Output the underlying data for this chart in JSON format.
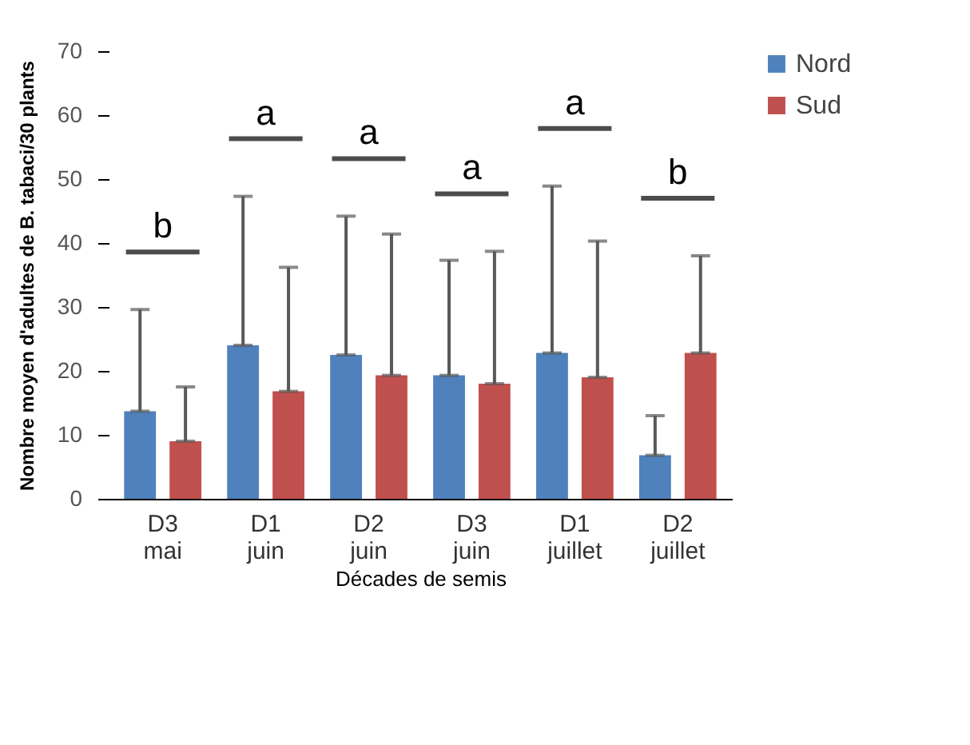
{
  "chart_data": {
    "type": "bar",
    "xlabel": "Décades de semis",
    "ylabel": "Nombre moyen d'adultes de B. tabaci/30 plants",
    "categories": [
      "D3 mai",
      "D1 juin",
      "D2 juin",
      "D3 juin",
      "D1 juillet",
      "D2 juillet"
    ],
    "series": [
      {
        "name": "Nord",
        "color": "#4f81bd",
        "values": [
          13.7,
          24.0,
          22.5,
          19.3,
          22.8,
          6.8
        ],
        "errors": [
          [
            13.7,
            29.6
          ],
          [
            24.0,
            47.3
          ],
          [
            22.5,
            44.2
          ],
          [
            19.3,
            37.3
          ],
          [
            22.8,
            48.9
          ],
          [
            6.8,
            13.0
          ]
        ]
      },
      {
        "name": "Sud",
        "color": "#c0504d",
        "values": [
          9.0,
          16.8,
          19.3,
          18.0,
          19.0,
          22.8
        ],
        "errors": [
          [
            9.0,
            17.5
          ],
          [
            16.8,
            36.2
          ],
          [
            19.3,
            41.4
          ],
          [
            18.0,
            38.7
          ],
          [
            19.0,
            40.3
          ],
          [
            22.8,
            38.0
          ]
        ]
      }
    ],
    "ylim": [
      0,
      70
    ],
    "yticks": [
      0,
      10,
      20,
      30,
      40,
      50,
      60,
      70
    ],
    "legend": "top right",
    "annotations": [
      "b",
      "a",
      "a",
      "a",
      "a",
      "b"
    ]
  }
}
